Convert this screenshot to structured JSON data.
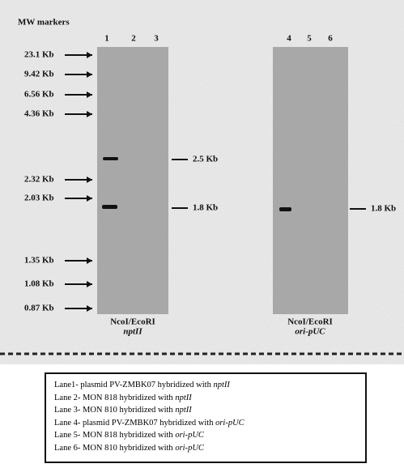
{
  "header": {
    "title": "MW markers"
  },
  "lanes": [
    "1",
    "2",
    "3",
    "4",
    "5",
    "6"
  ],
  "markers": [
    "23.1 Kb",
    "9.42 Kb",
    "6.56 Kb",
    "4.36 Kb",
    "2.32 Kb",
    "2.03 Kb",
    "1.35 Kb",
    "1.08 Kb",
    "0.87 Kb"
  ],
  "band_labels": [
    "2.5 Kb",
    "1.8 Kb",
    "1.8 Kb"
  ],
  "blots": [
    {
      "enzyme": "NcoI/EcoRI",
      "probe": "nptII"
    },
    {
      "enzyme": "NcoI/EcoRI",
      "probe": "ori-pUC"
    }
  ],
  "legend": [
    {
      "text": "Lane1- plasmid PV-ZMBK07 hybridized with ",
      "italic": "nptII"
    },
    {
      "text": "Lane 2- MON 818 hybridized with ",
      "italic": "nptII"
    },
    {
      "text": "Lane 3- MON 810 hybridized with ",
      "italic": "nptII"
    },
    {
      "text": "Lane 4- plasmid PV-ZMBK07 hybridized with ",
      "italic": "ori-pUC"
    },
    {
      "text": "Lane 5- MON 818 hybridized with ",
      "italic": "ori-pUC"
    },
    {
      "text": "Lane 6- MON 810 hybridized with ",
      "italic": "ori-pUC"
    }
  ]
}
